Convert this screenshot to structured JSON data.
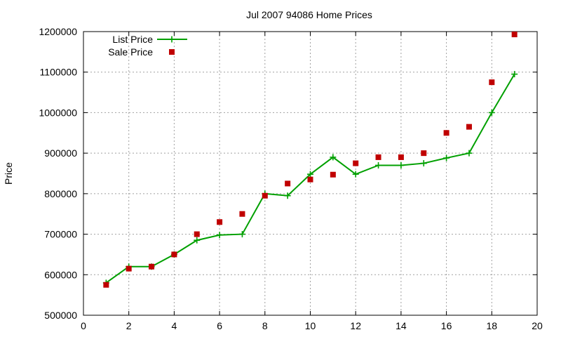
{
  "chart_data": {
    "type": "line",
    "title": "Jul 2007 94086 Home Prices",
    "xlabel": "",
    "ylabel": "Price",
    "xlim": [
      0,
      20
    ],
    "ylim": [
      500000,
      1200000
    ],
    "xticks": [
      0,
      2,
      4,
      6,
      8,
      10,
      12,
      14,
      16,
      18,
      20
    ],
    "yticks": [
      500000,
      600000,
      700000,
      800000,
      900000,
      1000000,
      1100000,
      1200000
    ],
    "grid": true,
    "legend_position": "top-left",
    "series": [
      {
        "name": "List Price",
        "style": "lines+points",
        "color": "#00a000",
        "marker": "plus",
        "x": [
          1,
          2,
          3,
          4,
          5,
          6,
          7,
          8,
          9,
          10,
          11,
          12,
          13,
          14,
          15,
          16,
          17,
          18,
          19
        ],
        "y": [
          580000,
          620000,
          620000,
          650000,
          685000,
          698000,
          700000,
          800000,
          795000,
          848000,
          890000,
          848000,
          870000,
          870000,
          875000,
          888000,
          900000,
          1000000,
          1095000
        ]
      },
      {
        "name": "Sale Price",
        "style": "points",
        "color": "#c00000",
        "marker": "square",
        "x": [
          1,
          2,
          3,
          4,
          5,
          6,
          7,
          8,
          9,
          10,
          11,
          12,
          13,
          14,
          15,
          16,
          17,
          18,
          19
        ],
        "y": [
          575000,
          615000,
          620000,
          650000,
          700000,
          730000,
          750000,
          795000,
          825000,
          835000,
          847000,
          875000,
          890000,
          890000,
          900000,
          950000,
          965000,
          1075000,
          1193000
        ]
      }
    ]
  }
}
